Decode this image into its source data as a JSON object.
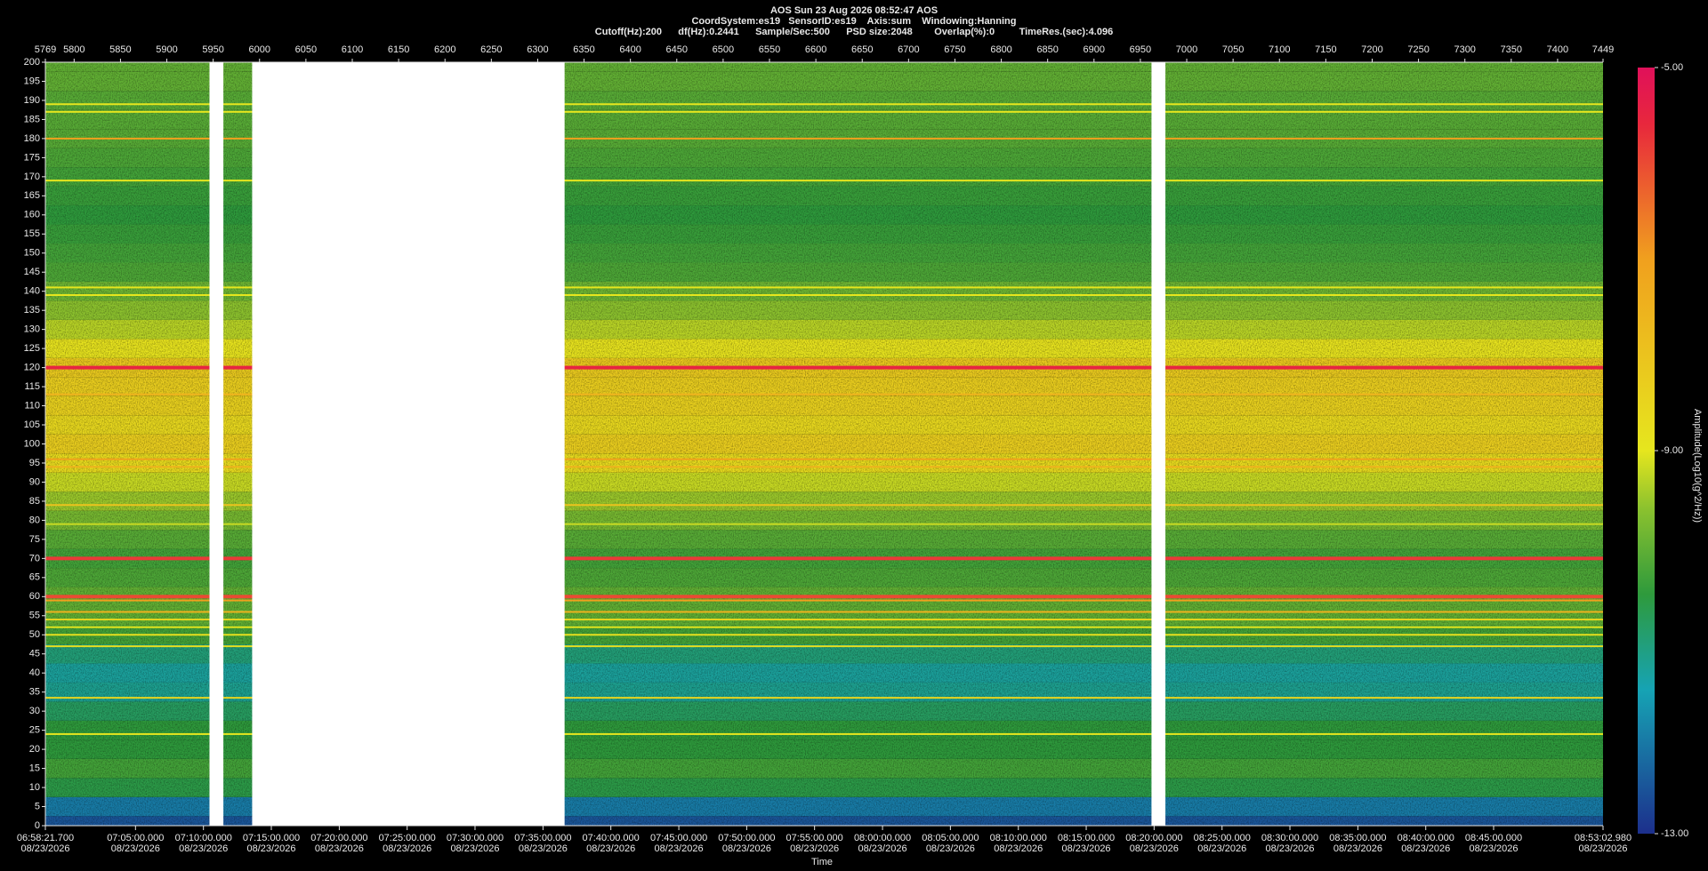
{
  "chart_data": {
    "type": "spectrogram",
    "title": "AOS  Sun 23 Aug 2026 08:52:47  AOS",
    "subtitle": "CoordSystem:es19   SensorID:es19    Axis:sum    Windowing:Hanning",
    "parameters": "Cutoff(Hz):200      df(Hz):0.2441      Sample/Sec:500      PSD size:2048        Overlap(%):0         TimeRes.(sec):4.096",
    "x_label": "Time",
    "xlim": [
      5769,
      7449
    ],
    "xticks": [
      5769,
      5800,
      5850,
      5900,
      5950,
      6000,
      6050,
      6100,
      6150,
      6200,
      6250,
      6300,
      6350,
      6400,
      6450,
      6500,
      6550,
      6600,
      6650,
      6700,
      6750,
      6800,
      6850,
      6900,
      6950,
      7000,
      7050,
      7100,
      7150,
      7200,
      7250,
      7300,
      7350,
      7400,
      7449
    ],
    "x2ticks": [
      {
        "value": 5769,
        "label": "06:58:21.700",
        "date": "08/23/2026"
      },
      {
        "value": 5866.2,
        "label": "07:05:00.000",
        "date": "08/23/2026"
      },
      {
        "value": 5939.5,
        "label": "07:10:00.000",
        "date": "08/23/2026"
      },
      {
        "value": 6012.7,
        "label": "07:15:00.000",
        "date": "08/23/2026"
      },
      {
        "value": 6086.0,
        "label": "07:20:00.000",
        "date": "08/23/2026"
      },
      {
        "value": 6159.2,
        "label": "07:25:00.000",
        "date": "08/23/2026"
      },
      {
        "value": 6232.4,
        "label": "07:30:00.000",
        "date": "08/23/2026"
      },
      {
        "value": 6305.7,
        "label": "07:35:00.000",
        "date": "08/23/2026"
      },
      {
        "value": 6378.9,
        "label": "07:40:00.000",
        "date": "08/23/2026"
      },
      {
        "value": 6452.2,
        "label": "07:45:00.000",
        "date": "08/23/2026"
      },
      {
        "value": 6525.4,
        "label": "07:50:00.000",
        "date": "08/23/2026"
      },
      {
        "value": 6598.6,
        "label": "07:55:00.000",
        "date": "08/23/2026"
      },
      {
        "value": 6671.9,
        "label": "08:00:00.000",
        "date": "08/23/2026"
      },
      {
        "value": 6745.1,
        "label": "08:05:00.000",
        "date": "08/23/2026"
      },
      {
        "value": 6818.4,
        "label": "08:10:00.000",
        "date": "08/23/2026"
      },
      {
        "value": 6891.6,
        "label": "08:15:00.000",
        "date": "08/23/2026"
      },
      {
        "value": 6964.8,
        "label": "08:20:00.000",
        "date": "08/23/2026"
      },
      {
        "value": 7038.1,
        "label": "08:25:00.000",
        "date": "08/23/2026"
      },
      {
        "value": 7111.3,
        "label": "08:30:00.000",
        "date": "08/23/2026"
      },
      {
        "value": 7184.6,
        "label": "08:35:00.000",
        "date": "08/23/2026"
      },
      {
        "value": 7257.8,
        "label": "08:40:00.000",
        "date": "08/23/2026"
      },
      {
        "value": 7331.0,
        "label": "08:45:00.000",
        "date": "08/23/2026"
      },
      {
        "value": 7449,
        "label": "08:53:02.980",
        "date": "08/23/2026"
      }
    ],
    "ylim": [
      0,
      200
    ],
    "yticks": [
      0,
      5,
      10,
      15,
      20,
      25,
      30,
      35,
      40,
      45,
      50,
      55,
      60,
      65,
      70,
      75,
      80,
      85,
      90,
      95,
      100,
      105,
      110,
      115,
      120,
      125,
      130,
      135,
      140,
      145,
      150,
      155,
      160,
      165,
      170,
      175,
      180,
      185,
      190,
      195,
      200
    ],
    "profile": {
      "frequencies": [
        0,
        5,
        10,
        15,
        20,
        25,
        30,
        35,
        40,
        45,
        50,
        55,
        60,
        65,
        70,
        75,
        80,
        85,
        90,
        95,
        100,
        105,
        110,
        115,
        120,
        125,
        130,
        135,
        140,
        145,
        150,
        155,
        160,
        165,
        170,
        175,
        180,
        185,
        190,
        195,
        200
      ],
      "amplitude": [
        -12.5,
        -12,
        -10.6,
        -10.3,
        -10.5,
        -10.5,
        -10.8,
        -11.2,
        -11.3,
        -11,
        -10.3,
        -10,
        -10,
        -10.2,
        -10.3,
        -10.1,
        -9.8,
        -9.5,
        -9.2,
        -8.7,
        -8.3,
        -8.6,
        -8.4,
        -8.3,
        -8.2,
        -8.9,
        -9.3,
        -9.6,
        -9.9,
        -10.2,
        -10.3,
        -10.4,
        -10.5,
        -10.4,
        -10.3,
        -10.2,
        -10.1,
        -10.1,
        -10.1,
        -10,
        -10
      ]
    },
    "lines": {
      "frequencies": [
        120,
        70,
        60,
        59,
        56,
        54,
        52,
        50,
        47,
        33.5,
        180,
        96,
        94,
        113,
        84,
        141,
        139,
        189,
        187,
        169,
        24,
        79
      ],
      "amplitude": [
        -5.5,
        -5.8,
        -6,
        -7,
        -7.5,
        -8.5,
        -9,
        -8.8,
        -8.8,
        -8.5,
        -7,
        -7,
        -7.5,
        -7.5,
        -8,
        -9,
        -9,
        -9,
        -9,
        -9,
        -9,
        -9.2
      ]
    },
    "gaps": {
      "start": [
        5946,
        5992,
        6962
      ],
      "end": [
        5961,
        6329,
        6977
      ]
    },
    "zlim": [
      -13,
      -5
    ],
    "zticks": [
      {
        "value": -5,
        "label": "-5.00"
      },
      {
        "value": -9,
        "label": "-9.00"
      },
      {
        "value": -13,
        "label": "-13.00"
      }
    ],
    "colorbar_label": "Amplitude(Log10(g^2/Hz))",
    "colormap": {
      "values": [
        -13,
        -11.5,
        -10.5,
        -9.6,
        -9,
        -7,
        -5.6,
        -5
      ],
      "colors": [
        "#1c2f8c",
        "#16a3b4",
        "#2e9a3c",
        "#8cc22e",
        "#e6e61e",
        "#f0a01e",
        "#e8283c",
        "#e0105a"
      ]
    }
  }
}
